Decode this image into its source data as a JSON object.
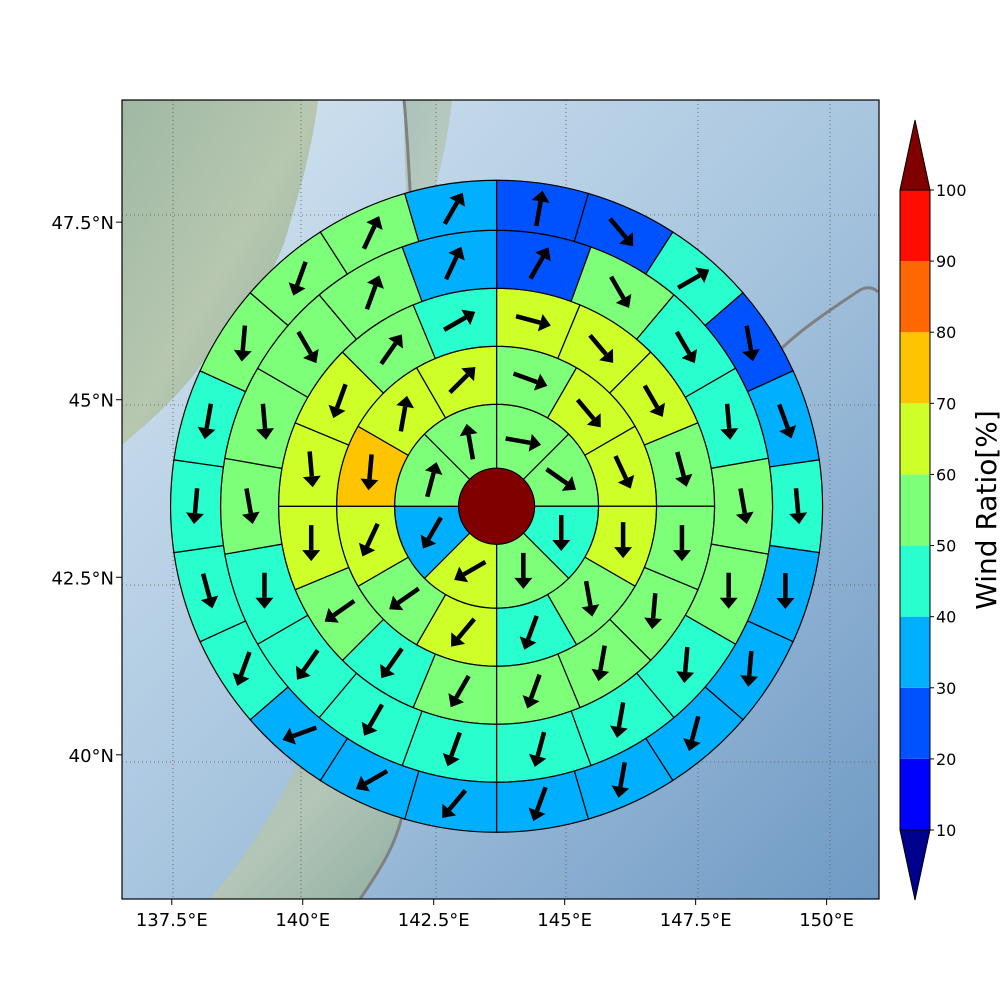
{
  "chart_data": {
    "type": "heatmap",
    "description_type": "polar-sector wind ratio map over a geographic basemap",
    "x_axis": {
      "ticks": [
        {
          "value": 137.5,
          "label": "137.5°E"
        },
        {
          "value": 140.0,
          "label": "140°E"
        },
        {
          "value": 142.5,
          "label": "142.5°E"
        },
        {
          "value": 145.0,
          "label": "145°E"
        },
        {
          "value": 147.5,
          "label": "147.5°E"
        },
        {
          "value": 150.0,
          "label": "150°E"
        }
      ],
      "range": [
        136.55,
        151.0
      ]
    },
    "y_axis": {
      "ticks": [
        {
          "value": 40.0,
          "label": "40°N"
        },
        {
          "value": 42.5,
          "label": "42.5°N"
        },
        {
          "value": 45.0,
          "label": "45°N"
        },
        {
          "value": 47.5,
          "label": "47.5°N"
        }
      ],
      "range": [
        37.97,
        49.22
      ]
    },
    "grid": true,
    "center": {
      "lon": 143.7,
      "lat": 43.5,
      "value": 100
    },
    "rings": [
      {
        "name": "ring-1",
        "sectors": 8,
        "values": [
          55,
          55,
          45,
          55,
          60,
          35,
          55,
          55
        ],
        "directions": [
          100,
          125,
          180,
          180,
          240,
          210,
          15,
          350
        ]
      },
      {
        "name": "ring-2",
        "sectors": 12,
        "values": [
          55,
          60,
          65,
          60,
          55,
          45,
          60,
          55,
          60,
          75,
          65,
          65
        ],
        "directions": [
          110,
          140,
          155,
          180,
          170,
          200,
          220,
          235,
          205,
          185,
          10,
          45
        ]
      },
      {
        "name": "ring-3",
        "sectors": 16,
        "values": [
          60,
          65,
          60,
          55,
          55,
          50,
          55,
          55,
          55,
          45,
          50,
          65,
          60,
          60,
          55,
          45
        ],
        "directions": [
          105,
          140,
          150,
          165,
          180,
          185,
          190,
          200,
          210,
          215,
          235,
          180,
          175,
          200,
          35,
          60
        ]
      },
      {
        "name": "ring-4",
        "sectors": 18,
        "values": [
          25,
          55,
          40,
          45,
          50,
          55,
          45,
          45,
          45,
          45,
          40,
          45,
          45,
          55,
          50,
          55,
          55,
          35
        ],
        "directions": [
          30,
          150,
          150,
          175,
          170,
          180,
          185,
          190,
          195,
          200,
          210,
          215,
          180,
          170,
          175,
          150,
          20,
          25
        ]
      },
      {
        "name": "ring-5",
        "sectors": 22,
        "values": [
          20,
          20,
          45,
          20,
          35,
          40,
          35,
          35,
          35,
          35,
          30,
          35,
          35,
          35,
          40,
          40,
          45,
          45,
          55,
          55,
          55,
          35
        ],
        "directions": [
          10,
          140,
          60,
          170,
          160,
          175,
          180,
          185,
          195,
          190,
          200,
          220,
          240,
          250,
          200,
          165,
          185,
          190,
          185,
          200,
          25,
          30
        ]
      }
    ],
    "colorbar": {
      "label": "Wind Ratio[%]",
      "orientation": "vertical",
      "placement": "right",
      "ticks": [
        10,
        20,
        30,
        40,
        50,
        60,
        70,
        80,
        90,
        100
      ],
      "bins": [
        {
          "min": 10,
          "max": 20,
          "color": "#0000ff"
        },
        {
          "min": 20,
          "max": 30,
          "color": "#0052ff"
        },
        {
          "min": 30,
          "max": 40,
          "color": "#00b0ff"
        },
        {
          "min": 40,
          "max": 50,
          "color": "#29ffce"
        },
        {
          "min": 50,
          "max": 60,
          "color": "#7dff7a"
        },
        {
          "min": 60,
          "max": 70,
          "color": "#ceff29"
        },
        {
          "min": 70,
          "max": 80,
          "color": "#ffc400"
        },
        {
          "min": 80,
          "max": 90,
          "color": "#ff6800"
        },
        {
          "min": 90,
          "max": 100,
          "color": "#ff0d00"
        }
      ],
      "under_color": "#00008f",
      "over_color": "#800000"
    }
  }
}
